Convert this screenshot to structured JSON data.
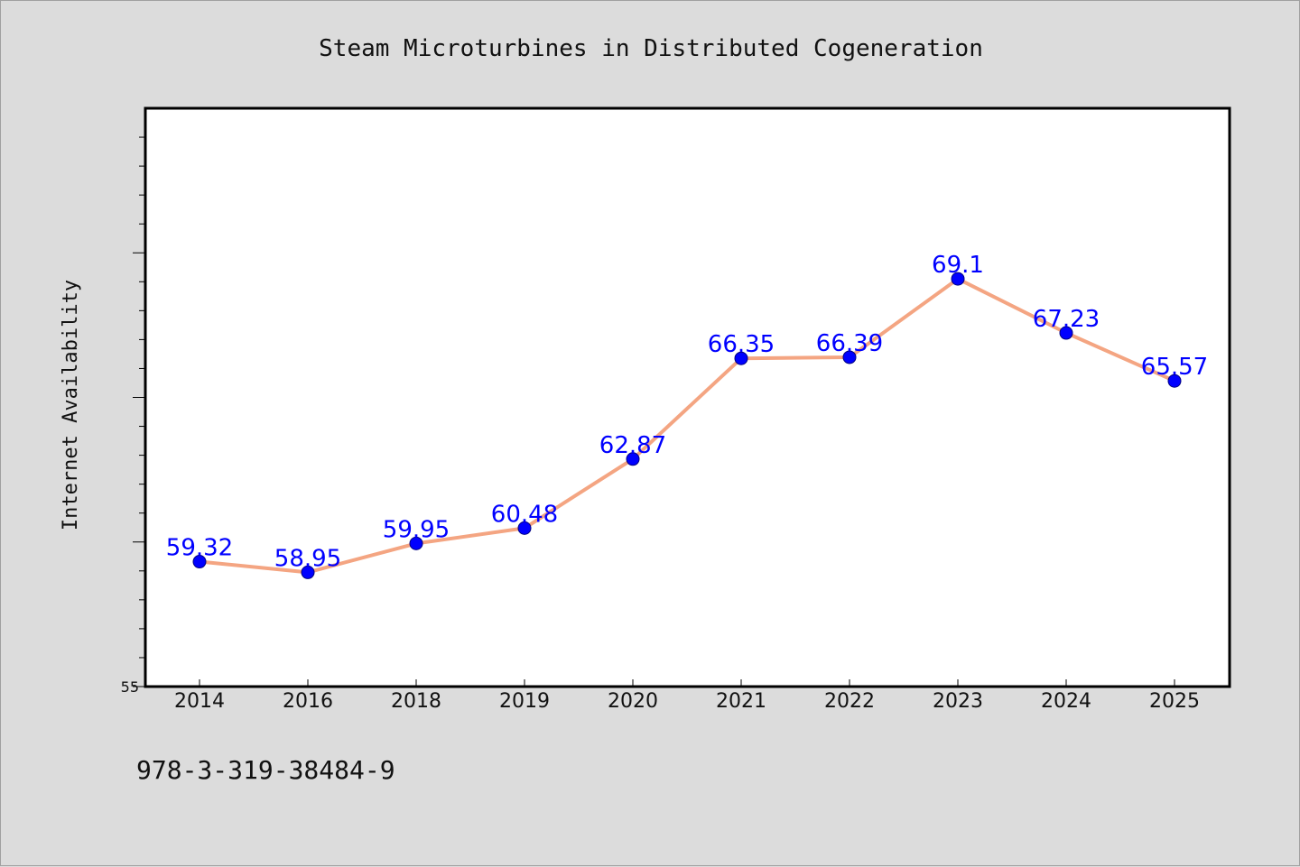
{
  "colors": {
    "background": "#dcdcdc",
    "plot_background": "#ffffff",
    "line": "#f4a582",
    "marker": "#0000ff",
    "label": "#0000ff"
  },
  "footer": {
    "text": "978-3-319-38484-9"
  },
  "chart_data": {
    "type": "line",
    "title": "Steam Microturbines in Distributed Cogeneration",
    "xlabel": "",
    "ylabel": "Internet Availability",
    "categories": [
      "2014",
      "2016",
      "2018",
      "2019",
      "2020",
      "2021",
      "2022",
      "2023",
      "2024",
      "2025"
    ],
    "series": [
      {
        "values": [
          59.32,
          58.95,
          59.95,
          60.48,
          62.87,
          66.35,
          66.39,
          69.1,
          67.23,
          65.57
        ],
        "labels": [
          "59.32",
          "58.95",
          "59.95",
          "60.48",
          "62.87",
          "66.35",
          "66.39",
          "69.1",
          "67.23",
          "65.57"
        ]
      }
    ],
    "ylim": [
      55,
      75
    ],
    "yticks_labeled": [
      "55"
    ],
    "grid": false,
    "legend": "none"
  }
}
